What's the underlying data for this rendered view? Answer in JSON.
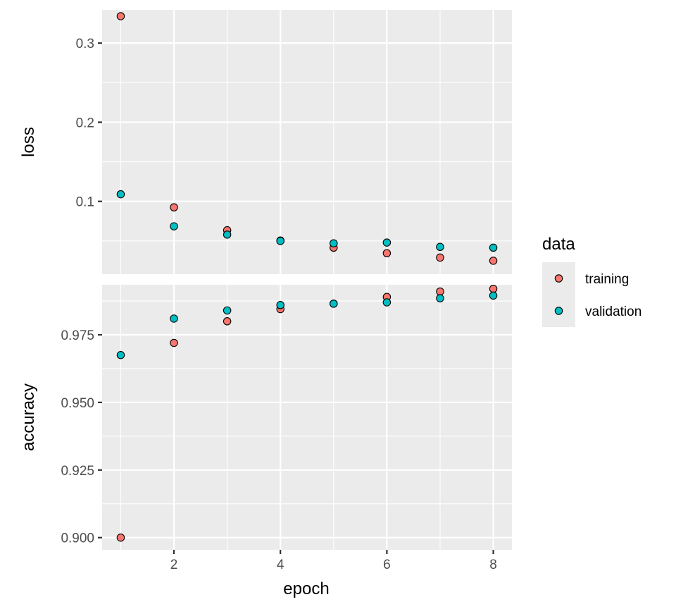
{
  "chart_data": {
    "type": "scatter",
    "facets": [
      {
        "name": "loss",
        "ylabel": "loss",
        "ylim": [
          0.008,
          0.342
        ],
        "yticks": [
          0.1,
          0.2,
          0.3
        ],
        "ytick_labels": [
          "0.1",
          "0.2",
          "0.3"
        ],
        "yminor": [
          0.05,
          0.15,
          0.25
        ],
        "series": [
          {
            "name": "training",
            "values": [
              0.334,
              0.0925,
              0.0635,
              0.0505,
              0.0415,
              0.0345,
              0.029,
              0.025
            ]
          },
          {
            "name": "validation",
            "values": [
              0.109,
              0.0685,
              0.058,
              0.05,
              0.047,
              0.048,
              0.0425,
              0.0415
            ]
          }
        ]
      },
      {
        "name": "accuracy",
        "ylabel": "accuracy",
        "ylim": [
          0.8955,
          0.9935
        ],
        "yticks": [
          0.9,
          0.925,
          0.95,
          0.975
        ],
        "ytick_labels": [
          "0.900",
          "0.925",
          "0.950",
          "0.975"
        ],
        "yminor": [
          0.9125,
          0.9375,
          0.9625,
          0.9875
        ],
        "series": [
          {
            "name": "training",
            "values": [
              0.9,
              0.972,
              0.98,
              0.9845,
              0.9865,
              0.989,
              0.991,
              0.992
            ]
          },
          {
            "name": "validation",
            "values": [
              0.9675,
              0.981,
              0.984,
              0.986,
              0.9865,
              0.987,
              0.9885,
              0.9895
            ]
          }
        ]
      }
    ],
    "x": [
      1,
      2,
      3,
      4,
      5,
      6,
      7,
      8
    ],
    "xlim": [
      0.65,
      8.35
    ],
    "xticks": [
      2,
      4,
      6,
      8
    ],
    "xtick_labels": [
      "2",
      "4",
      "6",
      "8"
    ],
    "xminor": [
      1,
      3,
      5,
      7
    ],
    "xlabel": "epoch",
    "legend": {
      "title": "data",
      "position": "right",
      "entries": [
        {
          "label": "training",
          "color": "#F8766D"
        },
        {
          "label": "validation",
          "color": "#00BFC4"
        }
      ]
    }
  }
}
